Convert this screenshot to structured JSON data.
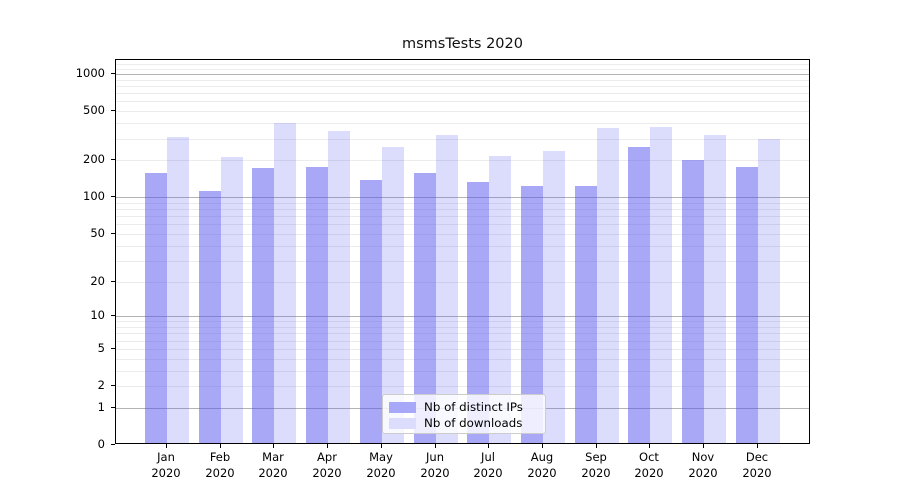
{
  "title": "msmsTests 2020",
  "colors": {
    "ips_bar": "rgba(82,82,240,0.5)",
    "downloads_bar": "rgba(82,82,240,0.2)",
    "ips_swatch": "#a8a8f8",
    "downloads_swatch": "#dcdcfc",
    "major_grid": "#b3b3b3",
    "minor_grid": "#ececec",
    "axis": "#000000"
  },
  "legend": {
    "items": [
      {
        "label": "Nb of distinct IPs",
        "series": "ips"
      },
      {
        "label": "Nb of downloads",
        "series": "downloads"
      }
    ]
  },
  "chart_data": {
    "type": "bar",
    "title": "msmsTests 2020",
    "categories": [
      "Jan 2020",
      "Feb 2020",
      "Mar 2020",
      "Apr 2020",
      "May 2020",
      "Jun 2020",
      "Jul 2020",
      "Aug 2020",
      "Sep 2020",
      "Oct 2020",
      "Nov 2020",
      "Dec 2020"
    ],
    "series": [
      {
        "name": "Nb of distinct IPs",
        "values": [
          152,
          108,
          168,
          170,
          132,
          152,
          129,
          119,
          120,
          246,
          195,
          170
        ]
      },
      {
        "name": "Nb of downloads",
        "values": [
          295,
          205,
          385,
          330,
          248,
          310,
          209,
          231,
          352,
          360,
          310,
          285
        ]
      }
    ],
    "xlabel": "",
    "ylabel": "",
    "yscale": "symlog",
    "y_ticks": [
      0,
      1,
      2,
      5,
      10,
      20,
      50,
      100,
      200,
      500,
      1000
    ],
    "ylim": [
      0,
      1300
    ],
    "grid": true,
    "legend_position": "lower center"
  }
}
